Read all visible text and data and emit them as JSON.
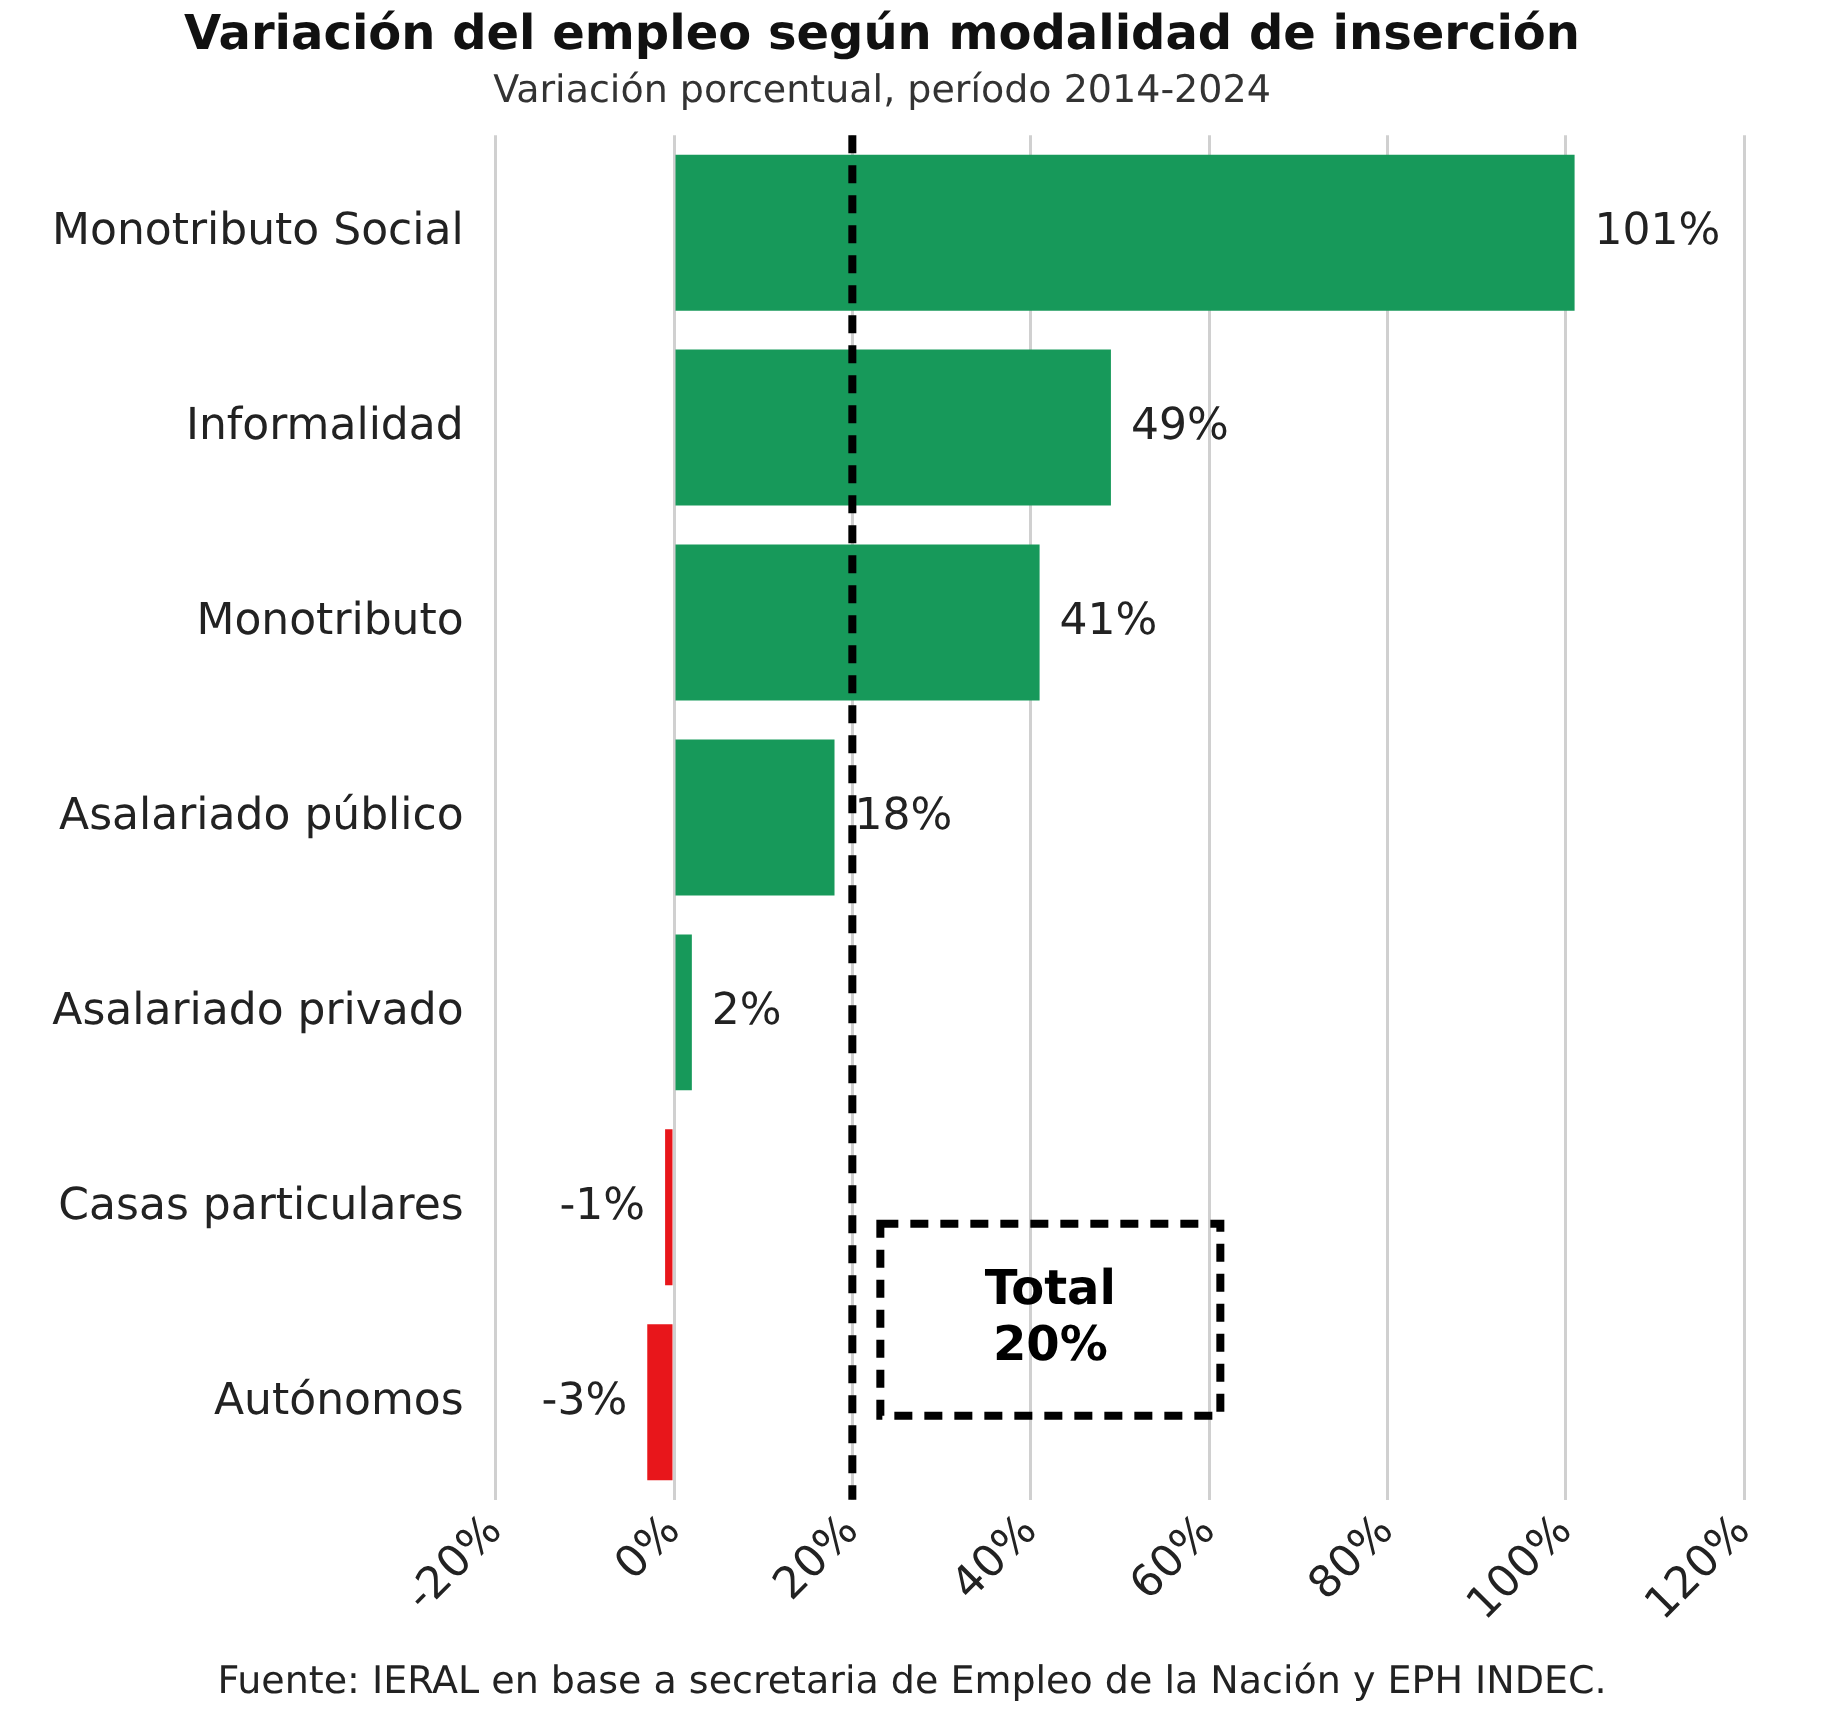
{
  "chart_data": {
    "type": "bar",
    "orientation": "horizontal",
    "title": "Variación del empleo según modalidad de inserción",
    "subtitle": "Variación porcentual, período 2014-2024",
    "categories": [
      "Monotributo Social",
      "Informalidad",
      "Monotributo",
      "Asalariado público",
      "Asalariado privado",
      "Casas particulares",
      "Autónomos"
    ],
    "values": [
      101,
      49,
      41,
      18,
      2,
      -1,
      -3
    ],
    "value_labels": [
      "101%",
      "49%",
      "41%",
      "18%",
      "2%",
      "-1%",
      "-3%"
    ],
    "colors": [
      "#17995a",
      "#17995a",
      "#17995a",
      "#17995a",
      "#17995a",
      "#e8161b",
      "#e8161b"
    ],
    "xlim": [
      -20,
      120
    ],
    "xticks": [
      {
        "value": -20,
        "label": "-20%"
      },
      {
        "value": 0,
        "label": "0%"
      },
      {
        "value": 20,
        "label": "20%"
      },
      {
        "value": 40,
        "label": "40%"
      },
      {
        "value": 60,
        "label": "60%"
      },
      {
        "value": 80,
        "label": "80%"
      },
      {
        "value": 100,
        "label": "100%"
      },
      {
        "value": 120,
        "label": "120%"
      }
    ],
    "grid": "x",
    "legend": false,
    "ref_lines": [
      {
        "axis": "x",
        "value": 20,
        "label": "Total 20%",
        "color": "#000000",
        "line_style": "dashed"
      }
    ],
    "annotations": [
      "Fuente: IERAL en base a secretaria de Empleo de la Nación y EPH INDEC."
    ]
  }
}
